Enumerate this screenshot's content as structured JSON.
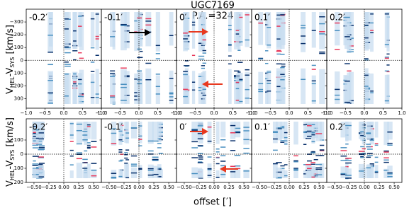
{
  "chart_data": {
    "type": "pvgrid",
    "title": "UGC7169",
    "subtitle": "P.A.=324",
    "ylabel": {
      "base": "V",
      "sub1": "HEL",
      "mid": "-V",
      "sub2": "SYS",
      "unit": " [km/s]"
    },
    "xlabel": "offset [′]",
    "reference_lines": {
      "x": 0,
      "y": 0
    },
    "rows": [
      {
        "panels": [
          "-0.2′",
          "-0.1′",
          "0′",
          "0.1′",
          "0.2′"
        ],
        "xlim": [
          -1,
          1
        ],
        "xticks": [
          {
            "value": -1,
            "label": "−1.0"
          },
          {
            "value": -0.5,
            "label": "−0.5"
          },
          {
            "value": 0,
            "label": "0.0"
          },
          0.5,
          {
            "value": 1,
            "label": "1.0"
          }
        ],
        "ylim": [
          -400,
          375
        ],
        "yticks": [
          {
            "value": -300,
            "label": "−300"
          },
          {
            "value": -200,
            "label": "−200"
          },
          {
            "value": -100,
            "label": "−100"
          },
          0,
          100,
          200,
          300
        ]
      },
      {
        "panels": [
          "-0.2′",
          "-0.1′",
          "0′",
          "0.1′",
          "0.2′"
        ],
        "xlim": [
          -0.63,
          0.63
        ],
        "xticks": [
          {
            "value": -0.5,
            "label": "−0.50"
          },
          {
            "value": -0.25,
            "label": "−0.25"
          },
          {
            "value": 0,
            "label": "0.00"
          },
          0.25,
          {
            "value": 0.5,
            "label": "0.50"
          }
        ],
        "ylim": [
          -250,
          200
        ],
        "yticks": [
          {
            "value": -100,
            "label": "−100"
          },
          0,
          100,
          200
        ]
      }
    ]
  }
}
